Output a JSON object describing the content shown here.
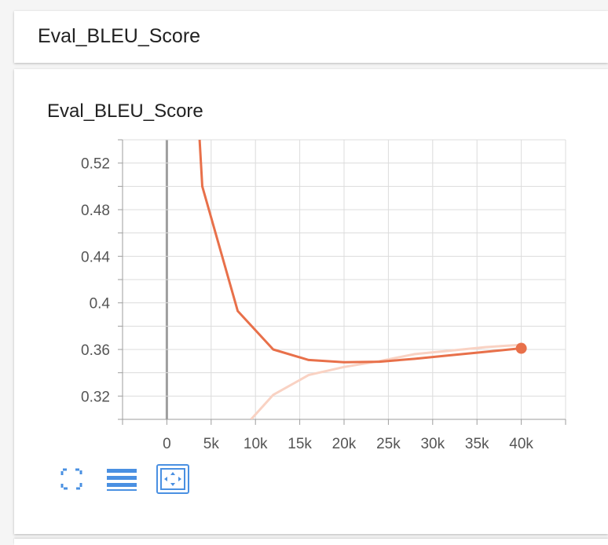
{
  "header": {
    "title": "Eval_BLEU_Score"
  },
  "chart_title": "Eval_BLEU_Score",
  "colors": {
    "accent": "#4a90e2",
    "series": "#e8704a",
    "series_raw": "#f9d2c3"
  },
  "toolbar": {
    "buttons": [
      {
        "icon": "fullscreen-icon"
      },
      {
        "icon": "data-table-icon"
      },
      {
        "icon": "fit-domain-icon",
        "active": true
      }
    ]
  },
  "chart_data": {
    "type": "line",
    "title": "",
    "xlabel": "",
    "ylabel": "",
    "xlim": [
      -5000,
      45000
    ],
    "ylim": [
      0.3,
      0.54
    ],
    "x_ticks": [
      0,
      5000,
      10000,
      15000,
      20000,
      25000,
      30000,
      35000,
      40000
    ],
    "x_tick_labels": [
      "0",
      "5k",
      "10k",
      "15k",
      "20k",
      "25k",
      "30k",
      "35k",
      "40k"
    ],
    "y_ticks": [
      0.32,
      0.36,
      0.4,
      0.44,
      0.48,
      0.52
    ],
    "y_tick_labels": [
      "0.32",
      "0.36",
      "0.4",
      "0.44",
      "0.48",
      "0.52"
    ],
    "grid": true,
    "series": [
      {
        "role": "smoothed",
        "x": [
          3700,
          4000,
          8000,
          12000,
          16000,
          20000,
          24000,
          28000,
          32000,
          36000,
          40000
        ],
        "y": [
          0.54,
          0.5,
          0.393,
          0.36,
          0.351,
          0.349,
          0.3495,
          0.352,
          0.355,
          0.358,
          0.361
        ]
      },
      {
        "role": "raw",
        "x": [
          9500,
          12000,
          16000,
          20000,
          24000,
          28000,
          32000,
          36000,
          40000
        ],
        "y": [
          0.3,
          0.321,
          0.338,
          0.345,
          0.35,
          0.356,
          0.359,
          0.362,
          0.364
        ]
      }
    ]
  }
}
